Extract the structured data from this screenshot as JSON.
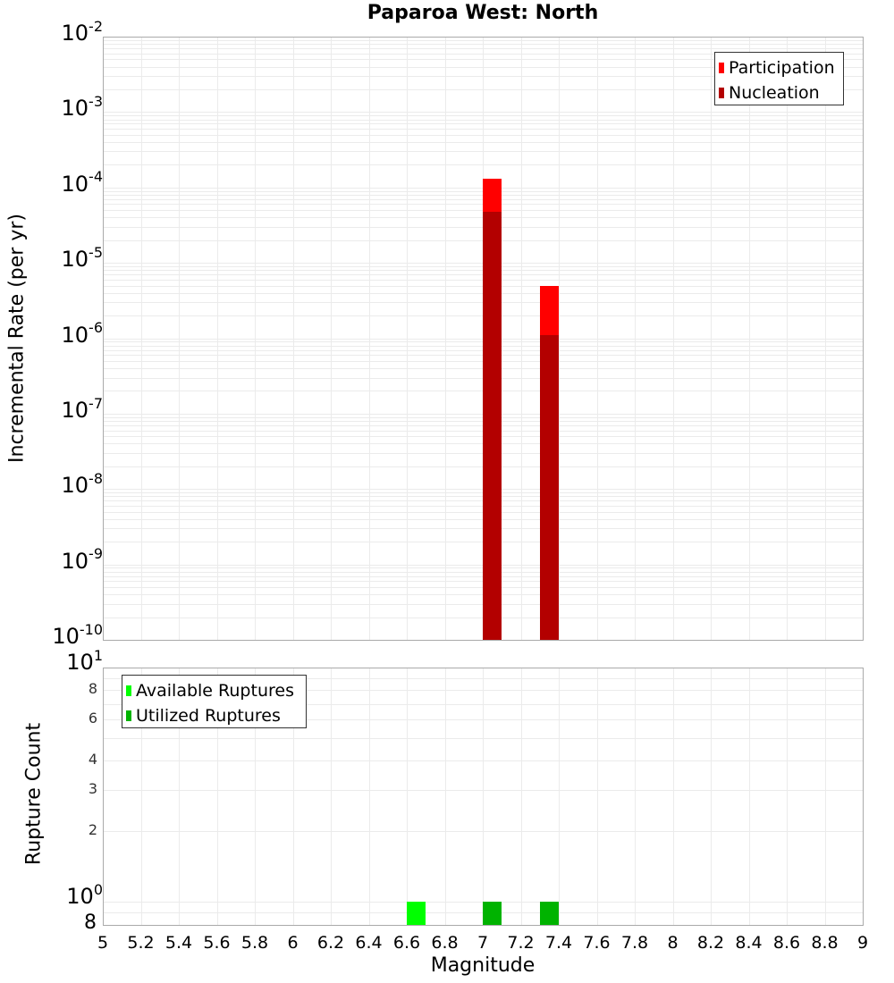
{
  "title": "Paparoa West: North",
  "colors": {
    "participation": "#ff0000",
    "nucleation": "#b30000",
    "available": "#00ff00",
    "utilized": "#00b300",
    "grid": "#ebebeb",
    "axis_border": "#aaaaaa"
  },
  "top_plot": {
    "ylabel": "Incremental Rate (per yr)",
    "legend": [
      {
        "label": "Participation",
        "color": "#ff0000"
      },
      {
        "label": "Nucleation",
        "color": "#b30000"
      }
    ],
    "yticks": [
      {
        "base": "10",
        "exp": "-2"
      },
      {
        "base": "10",
        "exp": "-3"
      },
      {
        "base": "10",
        "exp": "-4"
      },
      {
        "base": "10",
        "exp": "-5"
      },
      {
        "base": "10",
        "exp": "-6"
      },
      {
        "base": "10",
        "exp": "-7"
      },
      {
        "base": "10",
        "exp": "-8"
      },
      {
        "base": "10",
        "exp": "-9"
      },
      {
        "base": "10",
        "exp": "-10"
      }
    ]
  },
  "bottom_plot": {
    "ylabel": "Rupture Count",
    "legend": [
      {
        "label": "Available Ruptures",
        "color": "#00ff00"
      },
      {
        "label": "Utilized Ruptures",
        "color": "#00b300"
      }
    ],
    "yticks_major": [
      {
        "base": "10",
        "exp": "1"
      },
      {
        "base": "10",
        "exp": "0"
      }
    ],
    "yticks_minor": [
      "8",
      "6",
      "4",
      "3",
      "2"
    ],
    "ytick_bottom": "8"
  },
  "xaxis": {
    "label": "Magnitude",
    "ticks": [
      "5",
      "5.2",
      "5.4",
      "5.6",
      "5.8",
      "6",
      "6.2",
      "6.4",
      "6.6",
      "6.8",
      "7",
      "7.2",
      "7.4",
      "7.6",
      "7.8",
      "8",
      "8.2",
      "8.4",
      "8.6",
      "8.8",
      "9"
    ]
  },
  "chart_data": [
    {
      "type": "bar",
      "title": "Paparoa West: North",
      "xlabel": "Magnitude",
      "ylabel": "Incremental Rate (per yr)",
      "yscale": "log",
      "xlim": [
        5,
        9
      ],
      "ylim": [
        1e-10,
        0.01
      ],
      "grid": true,
      "legend_position": "upper right",
      "x": [
        7.05,
        7.35
      ],
      "bar_width": 0.1,
      "series": [
        {
          "name": "Participation",
          "color": "#ff0000",
          "values": [
            0.00013,
            5e-06
          ]
        },
        {
          "name": "Nucleation",
          "color": "#b30000",
          "values": [
            4.8e-05,
            1.1e-06
          ]
        }
      ]
    },
    {
      "type": "bar",
      "xlabel": "Magnitude",
      "ylabel": "Rupture Count",
      "yscale": "log",
      "xlim": [
        5,
        9
      ],
      "ylim": [
        0.8,
        10
      ],
      "grid": true,
      "legend_position": "upper left",
      "bar_width": 0.1,
      "series": [
        {
          "name": "Available Ruptures",
          "color": "#00ff00",
          "x": [
            6.65,
            7.05,
            7.35
          ],
          "values": [
            1,
            1,
            1
          ]
        },
        {
          "name": "Utilized Ruptures",
          "color": "#00b300",
          "x": [
            7.05,
            7.35
          ],
          "values": [
            1,
            1
          ]
        }
      ]
    }
  ]
}
